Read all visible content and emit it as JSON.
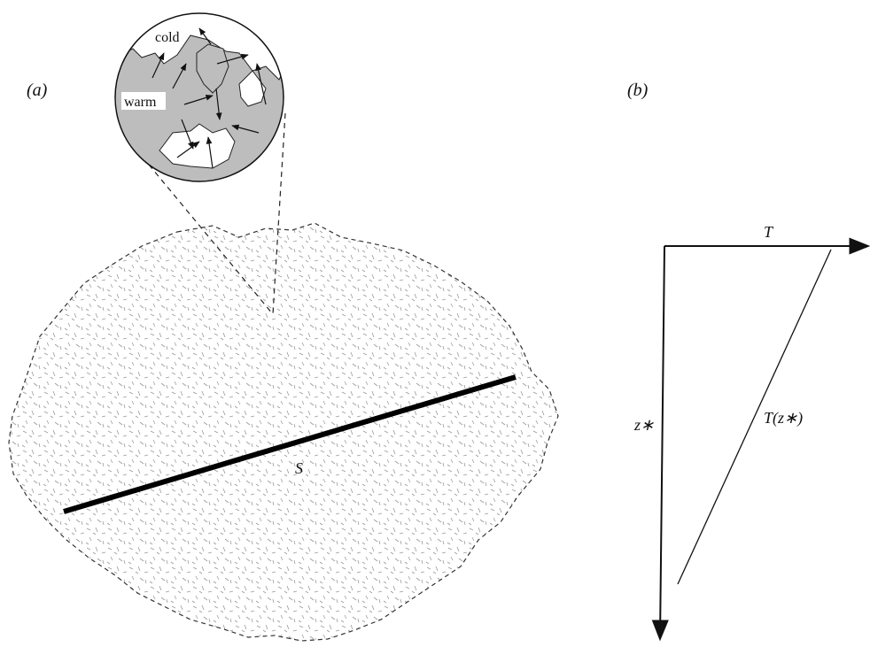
{
  "panel_a": {
    "label": "(a)",
    "inset": {
      "cold_label": "cold",
      "warm_label": "warm"
    },
    "line_label": "S"
  },
  "panel_b": {
    "label": "(b)",
    "x_axis_label": "T",
    "y_axis_label": "z∗",
    "curve_label": "T(z∗)"
  }
}
